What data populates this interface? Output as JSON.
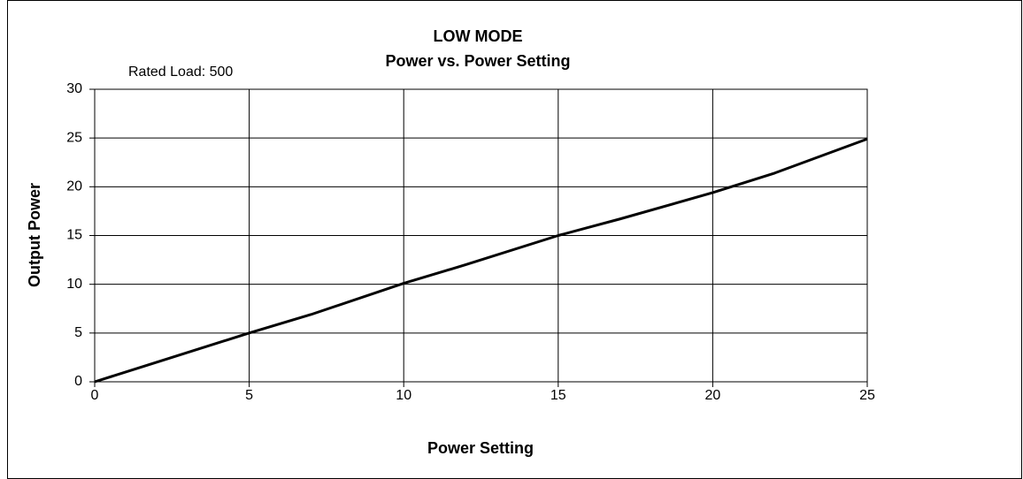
{
  "chart_data": {
    "type": "line",
    "title": "LOW MODE",
    "subtitle": "Power vs. Power Setting",
    "annotation": "Rated Load:  500",
    "x_label": "Power Setting",
    "y_label": "Output Power",
    "x": [
      0,
      2,
      5,
      7,
      10,
      12,
      15,
      17,
      20,
      22,
      25
    ],
    "series": [
      {
        "name": "Output Power",
        "color": "#000000",
        "values": [
          0,
          2,
          5,
          6.9,
          10.1,
          12,
          15,
          16.7,
          19.4,
          21.4,
          24.9
        ]
      }
    ],
    "xlim": [
      0,
      25
    ],
    "xticks": [
      0,
      5,
      10,
      15,
      20,
      25
    ],
    "ylim": [
      0,
      30
    ],
    "yticks": [
      0,
      5,
      10,
      15,
      20,
      25,
      30
    ],
    "grid": true
  }
}
